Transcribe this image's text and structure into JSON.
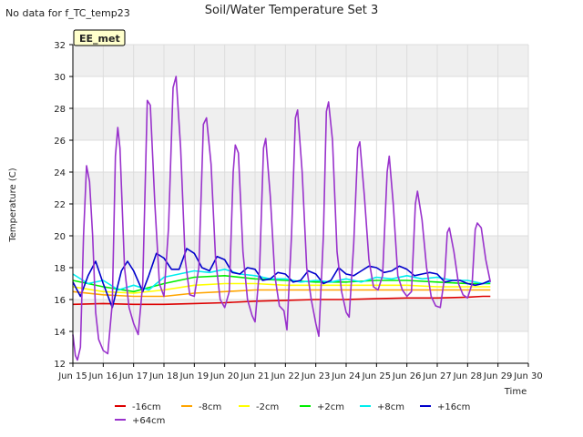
{
  "nodata_text": "No data for f_TC_temp23",
  "badge_text": "EE_met",
  "chart_data": {
    "type": "line",
    "title": "Soil/Water Temperature Set 3",
    "xlabel": "Time",
    "ylabel": "Temperature (C)",
    "xlim": [
      15,
      30
    ],
    "ylim": [
      12,
      32
    ],
    "xticks": [
      15,
      16,
      17,
      18,
      19,
      20,
      21,
      22,
      23,
      24,
      25,
      26,
      27,
      28,
      29,
      30
    ],
    "xtick_labels": [
      "Jun 15",
      "Jun 16",
      "Jun 17",
      "Jun 18",
      "Jun 19",
      "Jun 20",
      "Jun 21",
      "Jun 22",
      "Jun 23",
      "Jun 24",
      "Jun 25",
      "Jun 26",
      "Jun 27",
      "Jun 28",
      "Jun 29",
      "Jun 30"
    ],
    "yticks": [
      12,
      14,
      16,
      18,
      20,
      22,
      24,
      26,
      28,
      30,
      32
    ],
    "grid": true,
    "shaded_bands": [
      [
        14,
        16
      ],
      [
        18,
        20
      ],
      [
        22,
        24
      ],
      [
        26,
        28
      ],
      [
        30,
        32
      ]
    ],
    "legend_position": "bottom",
    "series": [
      {
        "name": "-16cm",
        "color": "#dd0000",
        "points": [
          [
            15.0,
            15.7
          ],
          [
            16.0,
            15.75
          ],
          [
            17.0,
            15.7
          ],
          [
            18.0,
            15.7
          ],
          [
            19.0,
            15.75
          ],
          [
            20.0,
            15.8
          ],
          [
            21.0,
            15.9
          ],
          [
            22.0,
            15.95
          ],
          [
            23.0,
            16.0
          ],
          [
            24.0,
            16.0
          ],
          [
            25.0,
            16.05
          ],
          [
            26.0,
            16.1
          ],
          [
            27.0,
            16.1
          ],
          [
            28.0,
            16.15
          ],
          [
            28.5,
            16.2
          ],
          [
            28.75,
            16.2
          ]
        ]
      },
      {
        "name": "-8cm",
        "color": "#ffa500",
        "points": [
          [
            15.0,
            16.5
          ],
          [
            16.0,
            16.3
          ],
          [
            17.0,
            16.2
          ],
          [
            18.0,
            16.2
          ],
          [
            19.0,
            16.4
          ],
          [
            20.0,
            16.5
          ],
          [
            21.0,
            16.6
          ],
          [
            22.0,
            16.6
          ],
          [
            23.0,
            16.6
          ],
          [
            24.0,
            16.6
          ],
          [
            25.0,
            16.6
          ],
          [
            26.0,
            16.6
          ],
          [
            27.0,
            16.6
          ],
          [
            28.0,
            16.6
          ],
          [
            28.75,
            16.6
          ]
        ]
      },
      {
        "name": "-2cm",
        "color": "#ffff00",
        "points": [
          [
            15.0,
            16.8
          ],
          [
            16.0,
            16.5
          ],
          [
            17.0,
            16.4
          ],
          [
            18.0,
            16.6
          ],
          [
            19.0,
            16.9
          ],
          [
            20.0,
            17.0
          ],
          [
            21.0,
            17.0
          ],
          [
            22.0,
            16.9
          ],
          [
            23.0,
            16.9
          ],
          [
            24.0,
            16.9
          ],
          [
            25.0,
            16.9
          ],
          [
            26.0,
            16.9
          ],
          [
            27.0,
            16.8
          ],
          [
            28.0,
            16.8
          ],
          [
            28.75,
            16.8
          ]
        ]
      },
      {
        "name": "+2cm",
        "color": "#00ee00",
        "points": [
          [
            15.0,
            17.2
          ],
          [
            16.0,
            16.8
          ],
          [
            17.0,
            16.5
          ],
          [
            18.0,
            17.0
          ],
          [
            19.0,
            17.4
          ],
          [
            20.0,
            17.5
          ],
          [
            21.0,
            17.3
          ],
          [
            22.0,
            17.2
          ],
          [
            23.0,
            17.1
          ],
          [
            24.0,
            17.1
          ],
          [
            25.0,
            17.2
          ],
          [
            26.0,
            17.2
          ],
          [
            27.0,
            17.1
          ],
          [
            28.0,
            17.0
          ],
          [
            28.75,
            17.0
          ]
        ]
      },
      {
        "name": "+8cm",
        "color": "#00eeee",
        "points": [
          [
            15.0,
            17.6
          ],
          [
            15.5,
            17.0
          ],
          [
            16.0,
            17.2
          ],
          [
            16.5,
            16.6
          ],
          [
            17.0,
            16.9
          ],
          [
            17.5,
            16.6
          ],
          [
            18.0,
            17.4
          ],
          [
            18.5,
            17.6
          ],
          [
            19.0,
            17.8
          ],
          [
            19.5,
            17.7
          ],
          [
            20.0,
            17.9
          ],
          [
            20.5,
            17.6
          ],
          [
            21.0,
            17.5
          ],
          [
            21.5,
            17.3
          ],
          [
            22.0,
            17.3
          ],
          [
            22.5,
            17.1
          ],
          [
            23.0,
            17.2
          ],
          [
            23.5,
            17.1
          ],
          [
            24.0,
            17.3
          ],
          [
            24.5,
            17.1
          ],
          [
            25.0,
            17.4
          ],
          [
            25.5,
            17.3
          ],
          [
            26.0,
            17.5
          ],
          [
            26.5,
            17.3
          ],
          [
            27.0,
            17.4
          ],
          [
            27.5,
            17.2
          ],
          [
            28.0,
            17.2
          ],
          [
            28.5,
            17.0
          ],
          [
            28.75,
            17.1
          ]
        ]
      },
      {
        "name": "+16cm",
        "color": "#0000cc",
        "points": [
          [
            15.0,
            17.1
          ],
          [
            15.25,
            16.2
          ],
          [
            15.5,
            17.5
          ],
          [
            15.75,
            18.4
          ],
          [
            16.0,
            17.0
          ],
          [
            16.3,
            15.5
          ],
          [
            16.6,
            17.8
          ],
          [
            16.8,
            18.4
          ],
          [
            17.0,
            17.8
          ],
          [
            17.3,
            16.5
          ],
          [
            17.5,
            17.5
          ],
          [
            17.75,
            18.9
          ],
          [
            18.0,
            18.6
          ],
          [
            18.25,
            17.9
          ],
          [
            18.5,
            17.9
          ],
          [
            18.75,
            19.2
          ],
          [
            19.0,
            18.9
          ],
          [
            19.25,
            18.0
          ],
          [
            19.5,
            17.8
          ],
          [
            19.75,
            18.7
          ],
          [
            20.0,
            18.5
          ],
          [
            20.25,
            17.7
          ],
          [
            20.5,
            17.6
          ],
          [
            20.75,
            18.0
          ],
          [
            21.0,
            17.9
          ],
          [
            21.25,
            17.2
          ],
          [
            21.5,
            17.3
          ],
          [
            21.75,
            17.7
          ],
          [
            22.0,
            17.6
          ],
          [
            22.25,
            17.1
          ],
          [
            22.5,
            17.2
          ],
          [
            22.75,
            17.8
          ],
          [
            23.0,
            17.6
          ],
          [
            23.25,
            17.0
          ],
          [
            23.5,
            17.2
          ],
          [
            23.75,
            18.0
          ],
          [
            24.0,
            17.6
          ],
          [
            24.25,
            17.5
          ],
          [
            24.5,
            17.8
          ],
          [
            24.75,
            18.1
          ],
          [
            25.0,
            18.0
          ],
          [
            25.25,
            17.7
          ],
          [
            25.5,
            17.8
          ],
          [
            25.75,
            18.1
          ],
          [
            26.0,
            17.9
          ],
          [
            26.25,
            17.5
          ],
          [
            26.5,
            17.6
          ],
          [
            26.75,
            17.7
          ],
          [
            27.0,
            17.6
          ],
          [
            27.25,
            17.1
          ],
          [
            27.5,
            17.2
          ],
          [
            27.75,
            17.2
          ],
          [
            28.0,
            17.0
          ],
          [
            28.25,
            16.9
          ],
          [
            28.5,
            17.0
          ],
          [
            28.75,
            17.2
          ]
        ]
      },
      {
        "name": "+64cm",
        "color": "#9932cc",
        "points": [
          [
            15.0,
            13.8
          ],
          [
            15.08,
            12.5
          ],
          [
            15.15,
            12.2
          ],
          [
            15.25,
            13.0
          ],
          [
            15.35,
            20.0
          ],
          [
            15.45,
            24.4
          ],
          [
            15.55,
            23.4
          ],
          [
            15.65,
            20.0
          ],
          [
            15.75,
            15.2
          ],
          [
            15.85,
            13.5
          ],
          [
            16.0,
            12.8
          ],
          [
            16.15,
            12.6
          ],
          [
            16.3,
            15.8
          ],
          [
            16.4,
            25.0
          ],
          [
            16.48,
            26.8
          ],
          [
            16.55,
            25.5
          ],
          [
            16.7,
            18.0
          ],
          [
            16.85,
            15.5
          ],
          [
            17.0,
            14.5
          ],
          [
            17.15,
            13.8
          ],
          [
            17.3,
            17.0
          ],
          [
            17.45,
            28.5
          ],
          [
            17.55,
            28.2
          ],
          [
            17.7,
            22.0
          ],
          [
            17.85,
            17.0
          ],
          [
            18.0,
            16.2
          ],
          [
            18.15,
            20.5
          ],
          [
            18.3,
            29.3
          ],
          [
            18.4,
            30.0
          ],
          [
            18.55,
            25.5
          ],
          [
            18.7,
            18.5
          ],
          [
            18.85,
            16.3
          ],
          [
            19.0,
            16.2
          ],
          [
            19.15,
            18.0
          ],
          [
            19.3,
            27.0
          ],
          [
            19.4,
            27.4
          ],
          [
            19.55,
            24.5
          ],
          [
            19.7,
            18.5
          ],
          [
            19.85,
            16.0
          ],
          [
            20.0,
            15.5
          ],
          [
            20.15,
            16.5
          ],
          [
            20.28,
            24.0
          ],
          [
            20.35,
            25.7
          ],
          [
            20.45,
            25.2
          ],
          [
            20.6,
            19.0
          ],
          [
            20.75,
            16.0
          ],
          [
            20.9,
            15.0
          ],
          [
            21.0,
            14.6
          ],
          [
            21.15,
            18.0
          ],
          [
            21.28,
            25.5
          ],
          [
            21.35,
            26.1
          ],
          [
            21.5,
            22.5
          ],
          [
            21.65,
            17.5
          ],
          [
            21.8,
            15.6
          ],
          [
            21.95,
            15.3
          ],
          [
            22.05,
            14.1
          ],
          [
            22.2,
            20.0
          ],
          [
            22.33,
            27.4
          ],
          [
            22.4,
            27.9
          ],
          [
            22.55,
            24.0
          ],
          [
            22.7,
            18.0
          ],
          [
            22.85,
            16.0
          ],
          [
            23.0,
            14.5
          ],
          [
            23.1,
            13.7
          ],
          [
            23.25,
            20.0
          ],
          [
            23.35,
            27.8
          ],
          [
            23.42,
            28.4
          ],
          [
            23.55,
            26.0
          ],
          [
            23.7,
            19.0
          ],
          [
            23.85,
            16.5
          ],
          [
            24.0,
            15.2
          ],
          [
            24.1,
            14.9
          ],
          [
            24.25,
            19.5
          ],
          [
            24.38,
            25.5
          ],
          [
            24.45,
            25.9
          ],
          [
            24.6,
            22.5
          ],
          [
            24.75,
            18.5
          ],
          [
            24.9,
            16.8
          ],
          [
            25.05,
            16.6
          ],
          [
            25.2,
            17.5
          ],
          [
            25.35,
            24.0
          ],
          [
            25.42,
            25.0
          ],
          [
            25.55,
            22.0
          ],
          [
            25.7,
            17.5
          ],
          [
            25.85,
            16.6
          ],
          [
            26.0,
            16.2
          ],
          [
            26.15,
            16.5
          ],
          [
            26.28,
            22.0
          ],
          [
            26.35,
            22.8
          ],
          [
            26.5,
            21.0
          ],
          [
            26.65,
            18.0
          ],
          [
            26.8,
            16.2
          ],
          [
            26.95,
            15.6
          ],
          [
            27.1,
            15.5
          ],
          [
            27.25,
            17.5
          ],
          [
            27.33,
            20.2
          ],
          [
            27.4,
            20.5
          ],
          [
            27.55,
            19.0
          ],
          [
            27.7,
            17.0
          ],
          [
            27.85,
            16.3
          ],
          [
            28.0,
            16.1
          ],
          [
            28.15,
            17.0
          ],
          [
            28.25,
            20.4
          ],
          [
            28.32,
            20.8
          ],
          [
            28.45,
            20.5
          ],
          [
            28.6,
            18.5
          ],
          [
            28.75,
            17.1
          ]
        ]
      }
    ]
  }
}
